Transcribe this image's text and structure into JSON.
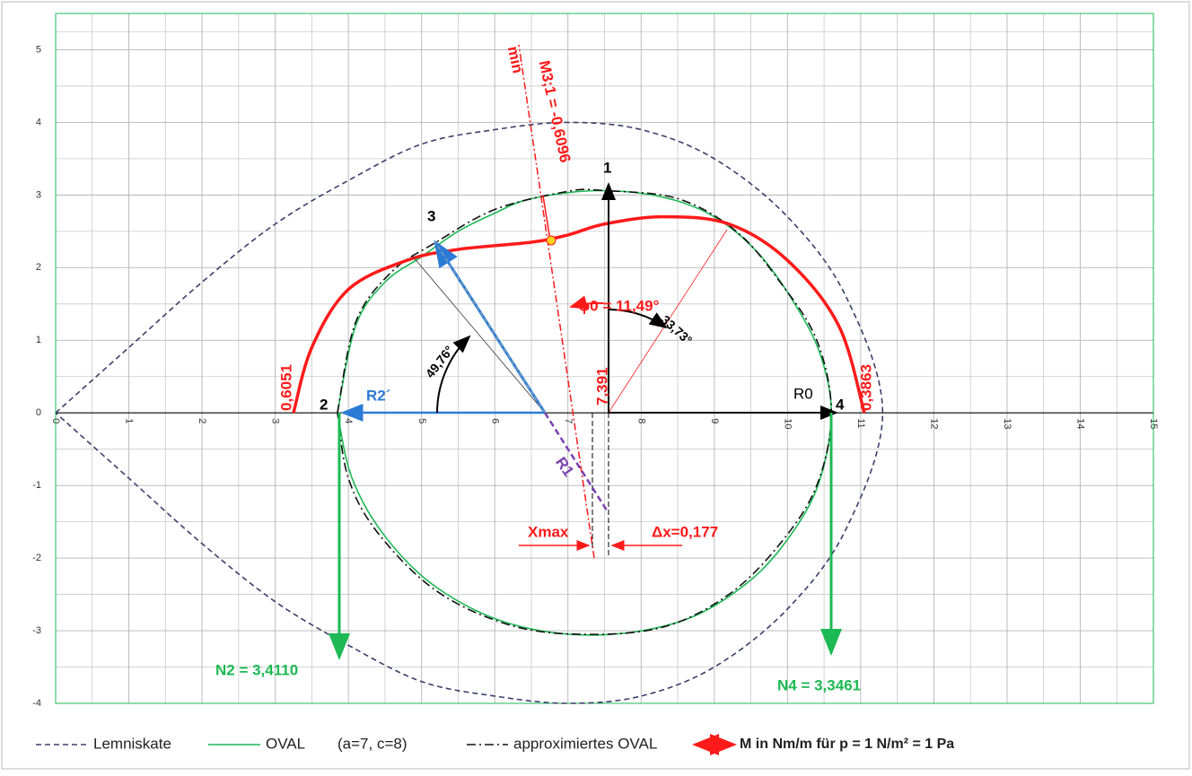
{
  "chart_data": {
    "type": "line",
    "xlim": [
      0,
      15
    ],
    "ylim": [
      -4,
      5.5
    ],
    "xticks": [
      0,
      1,
      2,
      3,
      4,
      5,
      6,
      7,
      8,
      9,
      10,
      11,
      12,
      13,
      14,
      15
    ],
    "yticks": [
      -4,
      -3,
      -2,
      -1,
      0,
      1,
      2,
      3,
      4,
      5
    ],
    "grid": true,
    "legend_note": "(a=7, c=8)",
    "series": [
      {
        "name": "Lemniskate",
        "color": "#3b3f6b",
        "dash": "dashed",
        "x": [
          0,
          1,
          2,
          3,
          4,
          5,
          6,
          7,
          8,
          9,
          10,
          10.8,
          11.3,
          10.8,
          10,
          9,
          8,
          7,
          6,
          5,
          4,
          3,
          2,
          1,
          0
        ],
        "values": [
          0,
          0.9,
          1.8,
          2.6,
          3.2,
          3.7,
          3.9,
          4,
          3.9,
          3.5,
          2.7,
          1.6,
          0,
          -1.6,
          -2.7,
          -3.5,
          -3.9,
          -4,
          -3.9,
          -3.7,
          -3.2,
          -2.6,
          -1.8,
          -0.9,
          0
        ]
      },
      {
        "name": "OVAL",
        "color": "#1db954",
        "dash": "solid",
        "x": [
          3.85,
          4.1,
          4.5,
          5,
          5.5,
          6,
          6.5,
          7.4,
          8.3,
          9,
          9.6,
          10.1,
          10.45,
          10.6,
          10.45,
          10.1,
          9.5,
          8.6,
          7.4,
          6.2,
          5.2,
          4.5,
          4.05,
          3.85
        ],
        "values": [
          0,
          1.2,
          1.8,
          2.15,
          2.5,
          2.75,
          2.95,
          3.06,
          2.97,
          2.7,
          2.2,
          1.5,
          0.8,
          0,
          -0.9,
          -1.6,
          -2.3,
          -2.85,
          -3.06,
          -2.9,
          -2.4,
          -1.7,
          -0.9,
          0
        ]
      },
      {
        "name": "approximiertes OVAL",
        "color": "#111111",
        "dash": "dashdot",
        "x": [
          3.85,
          4.1,
          4.6,
          5.2,
          6,
          7,
          7.5,
          8.5,
          9.3,
          9.9,
          10.4,
          10.6,
          10.4,
          9.9,
          9.2,
          8.3,
          7.2,
          6.2,
          5.2,
          4.4,
          4,
          3.85
        ],
        "values": [
          0,
          1.25,
          1.95,
          2.35,
          2.8,
          3.05,
          3.06,
          2.95,
          2.5,
          1.8,
          1,
          0,
          -1,
          -1.8,
          -2.5,
          -2.95,
          -3.05,
          -2.92,
          -2.45,
          -1.65,
          -0.9,
          0
        ]
      },
      {
        "name": "M in Nm/m für p = 1 N/m² = 1 Pa",
        "color": "#ff1a1a",
        "dash": "solid",
        "x": [
          3.25,
          3.5,
          4,
          4.8,
          5.5,
          6.5,
          7,
          7.5,
          8.3,
          9.2,
          10,
          10.7,
          11.05
        ],
        "values": [
          0,
          0.9,
          1.7,
          2.1,
          2.25,
          2.35,
          2.45,
          2.6,
          2.7,
          2.6,
          2.1,
          1.2,
          0
        ]
      }
    ],
    "annotations": [
      "min",
      "M3;1 = -0,6096",
      "1",
      "2",
      "3",
      "4",
      "R0",
      "R2´",
      "R1",
      "φ0 = 11,49°",
      "33,73°",
      "49,76°",
      "7,391",
      "0,6051",
      "0,3863",
      "Xmax",
      "Δx=0,177",
      "N2 = 3,4110",
      "N4 = 3,3461"
    ]
  }
}
